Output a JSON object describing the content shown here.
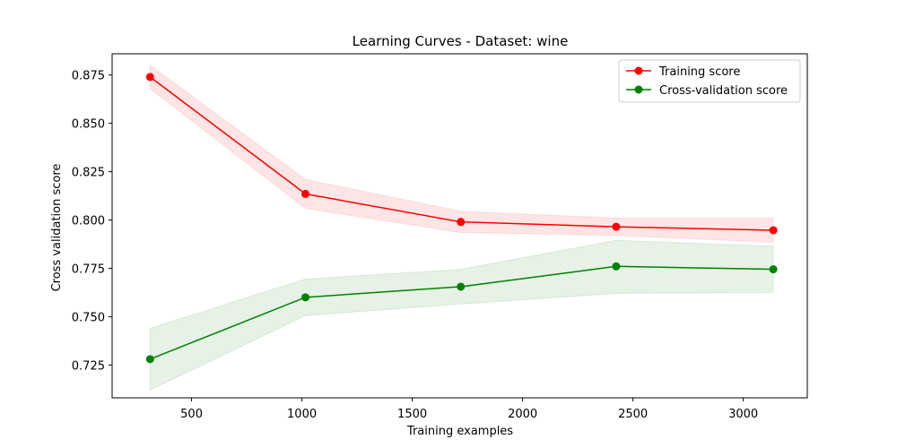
{
  "chart_data": {
    "type": "line",
    "title": "Learning Curves - Dataset: wine",
    "xlabel": "Training examples",
    "ylabel": "Cross validation score",
    "xlim": [
      140,
      3290
    ],
    "ylim": [
      0.708,
      0.886
    ],
    "xticks": [
      500,
      1000,
      1500,
      2000,
      2500,
      3000
    ],
    "yticks": [
      0.725,
      0.75,
      0.775,
      0.8,
      0.825,
      0.85,
      0.875
    ],
    "grid": false,
    "legend_position": "top-right",
    "x": [
      312,
      1016,
      1720,
      2424,
      3136
    ],
    "series": [
      {
        "name": "Training score",
        "color": "#ff0000",
        "band_color": "#ff0000",
        "values": [
          0.874,
          0.8135,
          0.799,
          0.7965,
          0.7947
        ],
        "lower": [
          0.868,
          0.806,
          0.7935,
          0.792,
          0.7885
        ],
        "upper": [
          0.88,
          0.821,
          0.8045,
          0.801,
          0.801
        ]
      },
      {
        "name": "Cross-validation score",
        "color": "#008000",
        "band_color": "#008000",
        "values": [
          0.728,
          0.76,
          0.7655,
          0.776,
          0.7745
        ],
        "lower": [
          0.712,
          0.7505,
          0.7565,
          0.762,
          0.7625
        ],
        "upper": [
          0.744,
          0.7695,
          0.7745,
          0.7895,
          0.7865
        ]
      }
    ]
  }
}
